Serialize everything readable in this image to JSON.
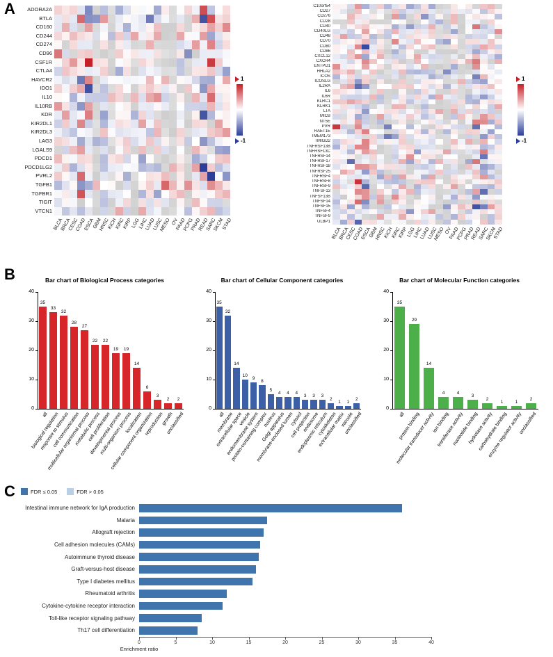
{
  "panel_labels": {
    "a": "A",
    "b": "B",
    "c": "C"
  },
  "chart_data": [
    {
      "id": "heatmap-inhibitory-genes",
      "type": "heatmap",
      "rows": [
        "ADORA2A",
        "BTLA",
        "CD160",
        "CD244",
        "CD274",
        "CD96",
        "CSF1R",
        "CTLA4",
        "HAVCR2",
        "IDO1",
        "IL10",
        "IL10RB",
        "KDR",
        "KIR2DL1",
        "KIR2DL3",
        "LAG3",
        "LGALS9",
        "PDCD1",
        "PDCD1LG2",
        "PVRL2",
        "TGFB1",
        "TGFBR1",
        "TIGIT",
        "VTCN1"
      ],
      "columns": [
        "BLCA",
        "BRCA",
        "CESC",
        "COAD",
        "ESCA",
        "GBM",
        "HNSC",
        "KICH",
        "KIRC",
        "KIRP",
        "LGG",
        "LIHC",
        "LUAD",
        "LUSC",
        "MESO",
        "OV",
        "PAAD",
        "PCPG",
        "PRAD",
        "READ",
        "SARC",
        "SKCM",
        "STAD"
      ],
      "value_range": [
        -1,
        1
      ],
      "colorbar_labels": {
        "max": "1",
        "min": "-1"
      },
      "palette": {
        "positive": "#c32127",
        "negative": "#2c3e97",
        "na": "#d6d6d6"
      }
    },
    {
      "id": "heatmap-stimulatory-genes",
      "type": "heatmap",
      "rows": [
        "C10orf54",
        "CD27",
        "CD276",
        "CD28",
        "CD40",
        "CD40LG",
        "CD48",
        "CD70",
        "CD80",
        "CD86",
        "CXCL12",
        "CXCR4",
        "ENTPD1",
        "HHLA2",
        "ICOS",
        "ICOSLG",
        "IL2RA",
        "IL6",
        "IL6R",
        "KLRC1",
        "KLRK1",
        "LTA",
        "MICB",
        "NT5E",
        "PVR",
        "RAET1E",
        "TMEM173",
        "TMIGD2",
        "TNFRSF13B",
        "TNFRSF13C",
        "TNFRSF14",
        "TNFRSF17",
        "TNFRSF18",
        "TNFRSF25",
        "TNFRSF4",
        "TNFRSF8",
        "TNFRSF9",
        "TNFSF13",
        "TNFSF13B",
        "TNFSF14",
        "TNFSF15",
        "TNFSF4",
        "TNFSF9",
        "ULBP1"
      ],
      "columns": [
        "BLCA",
        "BRCA",
        "CESC",
        "COAD",
        "ESCA",
        "GBM",
        "HNSC",
        "KICH",
        "KIRC",
        "KIRP",
        "LGG",
        "LIHC",
        "LUAD",
        "LUSC",
        "MESO",
        "OV",
        "PAAD",
        "PCPG",
        "PRAD",
        "READ",
        "SARC",
        "SKCM",
        "STAD"
      ],
      "value_range": [
        -1,
        1
      ],
      "colorbar_labels": {
        "max": "1",
        "min": "-1"
      },
      "palette": {
        "positive": "#c32127",
        "negative": "#2c3e97",
        "na": "#d6d6d6"
      }
    },
    {
      "id": "go-biological-process",
      "type": "bar",
      "title": "Bar chart of Biological Process categories",
      "bar_color": "#d7262a",
      "ylim": [
        0,
        40
      ],
      "yticks": [
        0,
        10,
        20,
        30,
        40
      ],
      "categories": [
        "all",
        "biological regulation",
        "response to stimulus",
        "cell communication",
        "multicellular organismal process",
        "metabolic process",
        "cell proliferation",
        "developmental process",
        "multi-organism process",
        "localization",
        "cellular component organization",
        "reproduction",
        "growth",
        "unclassified"
      ],
      "values": [
        35,
        33,
        32,
        28,
        27,
        22,
        22,
        19,
        19,
        14,
        6,
        3,
        2,
        2
      ]
    },
    {
      "id": "go-cellular-component",
      "type": "bar",
      "title": "Bar chart of Cellular Component categories",
      "bar_color": "#3c5fa5",
      "ylim": [
        0,
        40
      ],
      "yticks": [
        0,
        10,
        20,
        30,
        40
      ],
      "categories": [
        "all",
        "membrane",
        "extracellular space",
        "vesicle",
        "endomembrane system",
        "protein-containing complex",
        "nucleus",
        "Golgi apparatus",
        "membrane-enclosed lumen",
        "cytosol",
        "cell projection",
        "endosome",
        "endoplasmic reticulum",
        "cytoskeleton",
        "extracellular matrix",
        "vacuole",
        "unclassified"
      ],
      "values": [
        35,
        32,
        14,
        10,
        9,
        8,
        5,
        4,
        4,
        4,
        3,
        3,
        3,
        2,
        1,
        1,
        2
      ]
    },
    {
      "id": "go-molecular-function",
      "type": "bar",
      "title": "Bar chart of Molecular Function categories",
      "bar_color": "#4caf4a",
      "ylim": [
        0,
        40
      ],
      "yticks": [
        0,
        10,
        20,
        30,
        40
      ],
      "categories": [
        "all",
        "protein binding",
        "molecular transducer activity",
        "ion binding",
        "transferase activity",
        "nucleotide binding",
        "hydrolase activity",
        "carbohydrate binding",
        "enzyme regulator activity",
        "unclassified"
      ],
      "values": [
        35,
        29,
        14,
        4,
        4,
        3,
        2,
        1,
        1,
        2
      ]
    },
    {
      "id": "kegg-pathway-enrichment",
      "type": "hbar",
      "xlabel": "Enrichment ratio",
      "xlim": [
        0,
        40
      ],
      "xticks": [
        0,
        5,
        10,
        15,
        20,
        25,
        30,
        35,
        40
      ],
      "bar_color": "#3f74ad",
      "legend": [
        {
          "label": "FDR ≤ 0.05",
          "color": "#3f74ad"
        },
        {
          "label": "FDR > 0.05",
          "color": "#b9cfe6"
        }
      ],
      "categories": [
        "Intestinal immune network for IgA production",
        "Malaria",
        "Allograft rejection",
        "Cell adhesion molecules (CAMs)",
        "Autoimmune thyroid disease",
        "Graft-versus-host disease",
        "Type I diabetes mellitus",
        "Rheumatoid arthritis",
        "Cytokine-cytokine receptor interaction",
        "Toll-like receptor signaling pathway",
        "Th17 cell differentiation"
      ],
      "values": [
        36,
        17.5,
        17,
        16.6,
        16.4,
        16,
        15.5,
        12,
        11.4,
        8.6,
        8
      ]
    }
  ]
}
